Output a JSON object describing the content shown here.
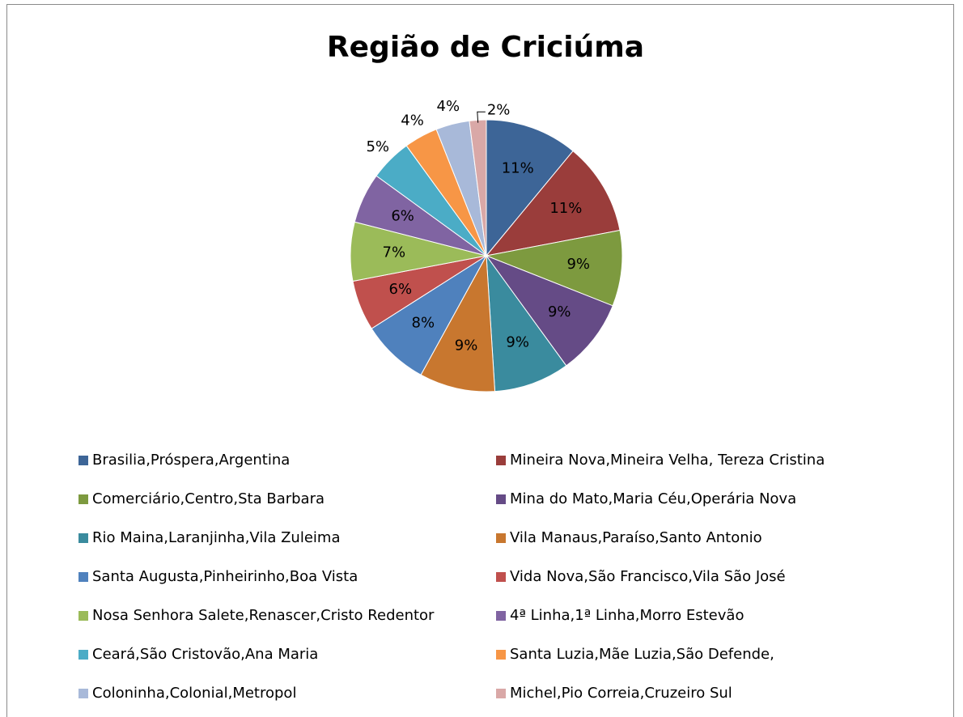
{
  "chart_data": {
    "type": "pie",
    "title": "Região de Criciúma",
    "categories": [
      "Brasilia,Próspera,Argentina",
      "Mineira Nova,Mineira Velha, Tereza Cristina",
      "Comerciário,Centro,Sta Barbara",
      "Mina do Mato,Maria Céu,Operária Nova",
      "Rio Maina,Laranjinha,Vila Zuleima",
      "Vila Manaus,Paraíso,Santo Antonio",
      "Santa Augusta,Pinheirinho,Boa Vista",
      "Vida Nova,São Francisco,Vila São José",
      "Nosa Senhora Salete,Renascer,Cristo Redentor",
      "4ª Linha,1ª Linha,Morro Estevão",
      "Ceará,São Cristovão,Ana Maria",
      "Santa Luzia,Mãe Luzia,São Defende,",
      "Coloninha,Colonial,Metropol",
      "Michel,Pio Correia,Cruzeiro Sul"
    ],
    "values": [
      11,
      11,
      9,
      9,
      9,
      9,
      8,
      6,
      7,
      6,
      5,
      4,
      4,
      2
    ],
    "value_labels": [
      "11%",
      "11%",
      "9%",
      "9%",
      "9%",
      "9%",
      "8%",
      "6%",
      "7%",
      "6%",
      "5%",
      "4%",
      "4%",
      "2%"
    ],
    "colors": [
      "#3d6597",
      "#9a3d3b",
      "#7d9a3f",
      "#654b86",
      "#3a8b9e",
      "#c8772f",
      "#4f81bd",
      "#c0504d",
      "#9bbb59",
      "#8064a2",
      "#4bacc6",
      "#f79646",
      "#a8b9d9",
      "#d9a8a7"
    ],
    "legend": "bottom"
  }
}
